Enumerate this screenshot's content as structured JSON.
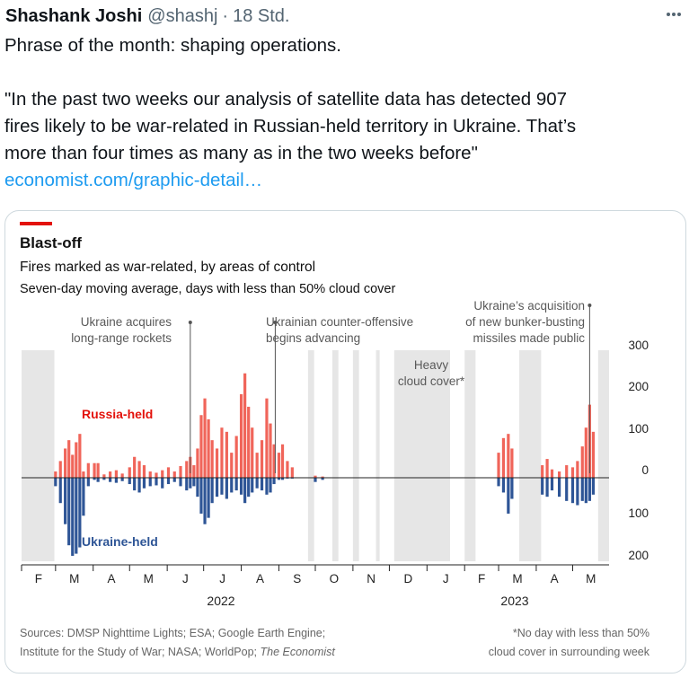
{
  "tweet": {
    "author_name": "Shashank Joshi",
    "handle": "@shashj",
    "separator": "·",
    "time": "18 Std.",
    "line1": "Phrase of the month: shaping operations.",
    "quote_lines": [
      "\"In the past two weeks our analysis of satellite data has detected 907",
      "fires likely to be war-related in Russian-held territory in Ukraine. That’s",
      "more than four times as many as in the two weeks before\""
    ],
    "link": "economist.com/graphic-detail…",
    "more_icon": "more-dots-icon"
  },
  "figure": {
    "title": "Blast-off",
    "subtitle": "Fires marked as war-related, by areas of control",
    "subtitle2": "Seven-day moving average, days with less than 50% cloud cover",
    "annotations": {
      "rockets": [
        "Ukraine acquires",
        "long-range rockets"
      ],
      "counter": [
        "Ukrainian counter-offensive",
        "begins advancing"
      ],
      "cloud": [
        "Heavy",
        "cloud cover*"
      ],
      "missiles": [
        "Ukraine’s acquisition",
        "of new bunker-busting",
        "missiles made public"
      ]
    },
    "series_labels": {
      "russia": "Russia-held",
      "ukraine": "Ukraine-held"
    },
    "sources": [
      "Sources: DMSP Nighttime Lights; ESA; Google Earth Engine;",
      "Institute for the Study of War; NASA; WorldPop; "
    ],
    "sources_italic": "The Economist",
    "footnote": [
      "*No day with less than 50%",
      "cloud cover in surrounding week"
    ],
    "colors": {
      "accent": "#e3120b",
      "russia": "#f0655a",
      "ukraine": "#2e5596",
      "shade": "#e6e6e6"
    }
  },
  "chart_data": {
    "type": "bar",
    "title": "Blast-off",
    "subtitle": "Fires marked as war-related, by areas of control",
    "xlabel": "",
    "ylabel": "",
    "x_ticks": [
      "F",
      "M",
      "A",
      "M",
      "J",
      "J",
      "A",
      "S",
      "O",
      "N",
      "D",
      "J",
      "F",
      "M",
      "A",
      "M"
    ],
    "year_labels": [
      "2022",
      "2023"
    ],
    "y_ticks_up": [
      "300",
      "200",
      "100",
      "0"
    ],
    "y_ticks_down": [
      "100",
      "200"
    ],
    "ylim": [
      -200,
      300
    ],
    "series": [
      {
        "name": "Russia-held",
        "direction": "up",
        "points": [
          [
            "2022-03-01",
            15
          ],
          [
            "2022-03-05",
            40
          ],
          [
            "2022-03-09",
            70
          ],
          [
            "2022-03-12",
            90
          ],
          [
            "2022-03-15",
            55
          ],
          [
            "2022-03-18",
            85
          ],
          [
            "2022-03-21",
            105
          ],
          [
            "2022-03-24",
            15
          ],
          [
            "2022-03-28",
            35
          ],
          [
            "2022-04-02",
            35
          ],
          [
            "2022-04-05",
            35
          ],
          [
            "2022-04-10",
            8
          ],
          [
            "2022-04-15",
            15
          ],
          [
            "2022-04-20",
            18
          ],
          [
            "2022-04-25",
            10
          ],
          [
            "2022-05-01",
            25
          ],
          [
            "2022-05-05",
            50
          ],
          [
            "2022-05-09",
            40
          ],
          [
            "2022-05-13",
            30
          ],
          [
            "2022-05-18",
            15
          ],
          [
            "2022-05-23",
            12
          ],
          [
            "2022-05-28",
            18
          ],
          [
            "2022-06-02",
            25
          ],
          [
            "2022-06-07",
            15
          ],
          [
            "2022-06-12",
            28
          ],
          [
            "2022-06-17",
            40
          ],
          [
            "2022-06-20",
            50
          ],
          [
            "2022-06-23",
            30
          ],
          [
            "2022-06-26",
            70
          ],
          [
            "2022-06-29",
            150
          ],
          [
            "2022-07-02",
            190
          ],
          [
            "2022-07-05",
            140
          ],
          [
            "2022-07-08",
            90
          ],
          [
            "2022-07-12",
            70
          ],
          [
            "2022-07-16",
            120
          ],
          [
            "2022-07-20",
            110
          ],
          [
            "2022-07-24",
            60
          ],
          [
            "2022-07-28",
            100
          ],
          [
            "2022-08-01",
            200
          ],
          [
            "2022-08-04",
            250
          ],
          [
            "2022-08-07",
            170
          ],
          [
            "2022-08-10",
            120
          ],
          [
            "2022-08-14",
            60
          ],
          [
            "2022-08-18",
            90
          ],
          [
            "2022-08-22",
            190
          ],
          [
            "2022-08-25",
            130
          ],
          [
            "2022-08-28",
            80
          ],
          [
            "2022-09-01",
            60
          ],
          [
            "2022-09-04",
            80
          ],
          [
            "2022-09-08",
            40
          ],
          [
            "2022-09-12",
            25
          ],
          [
            "2022-10-01",
            5
          ],
          [
            "2022-10-07",
            3
          ],
          [
            "2023-03-01",
            60
          ],
          [
            "2023-03-05",
            95
          ],
          [
            "2023-03-09",
            105
          ],
          [
            "2023-03-12",
            70
          ],
          [
            "2023-04-06",
            30
          ],
          [
            "2023-04-10",
            45
          ],
          [
            "2023-04-14",
            20
          ],
          [
            "2023-04-20",
            15
          ],
          [
            "2023-04-26",
            30
          ],
          [
            "2023-05-01",
            25
          ],
          [
            "2023-05-05",
            40
          ],
          [
            "2023-05-09",
            75
          ],
          [
            "2023-05-12",
            120
          ],
          [
            "2023-05-15",
            175
          ],
          [
            "2023-05-18",
            110
          ]
        ]
      },
      {
        "name": "Ukraine-held",
        "direction": "down",
        "points": [
          [
            "2022-03-01",
            20
          ],
          [
            "2022-03-05",
            60
          ],
          [
            "2022-03-09",
            110
          ],
          [
            "2022-03-12",
            160
          ],
          [
            "2022-03-15",
            185
          ],
          [
            "2022-03-18",
            180
          ],
          [
            "2022-03-21",
            165
          ],
          [
            "2022-03-24",
            90
          ],
          [
            "2022-03-28",
            20
          ],
          [
            "2022-04-02",
            5
          ],
          [
            "2022-04-05",
            10
          ],
          [
            "2022-04-10",
            5
          ],
          [
            "2022-04-15",
            10
          ],
          [
            "2022-04-20",
            12
          ],
          [
            "2022-04-25",
            8
          ],
          [
            "2022-05-01",
            15
          ],
          [
            "2022-05-05",
            30
          ],
          [
            "2022-05-09",
            35
          ],
          [
            "2022-05-13",
            25
          ],
          [
            "2022-05-18",
            20
          ],
          [
            "2022-05-23",
            18
          ],
          [
            "2022-05-28",
            25
          ],
          [
            "2022-06-02",
            15
          ],
          [
            "2022-06-07",
            10
          ],
          [
            "2022-06-12",
            20
          ],
          [
            "2022-06-17",
            30
          ],
          [
            "2022-06-20",
            25
          ],
          [
            "2022-06-23",
            20
          ],
          [
            "2022-06-26",
            45
          ],
          [
            "2022-06-29",
            85
          ],
          [
            "2022-07-02",
            110
          ],
          [
            "2022-07-05",
            95
          ],
          [
            "2022-07-08",
            60
          ],
          [
            "2022-07-12",
            45
          ],
          [
            "2022-07-16",
            40
          ],
          [
            "2022-07-20",
            50
          ],
          [
            "2022-07-24",
            35
          ],
          [
            "2022-07-28",
            30
          ],
          [
            "2022-08-01",
            40
          ],
          [
            "2022-08-04",
            60
          ],
          [
            "2022-08-07",
            45
          ],
          [
            "2022-08-10",
            35
          ],
          [
            "2022-08-14",
            25
          ],
          [
            "2022-08-18",
            30
          ],
          [
            "2022-08-22",
            40
          ],
          [
            "2022-08-25",
            35
          ],
          [
            "2022-08-28",
            15
          ],
          [
            "2022-09-01",
            5
          ],
          [
            "2022-09-04",
            5
          ],
          [
            "2022-09-08",
            2
          ],
          [
            "2022-09-12",
            2
          ],
          [
            "2022-10-01",
            10
          ],
          [
            "2022-10-07",
            5
          ],
          [
            "2023-03-01",
            20
          ],
          [
            "2023-03-05",
            35
          ],
          [
            "2023-03-09",
            85
          ],
          [
            "2023-03-12",
            50
          ],
          [
            "2023-04-06",
            40
          ],
          [
            "2023-04-10",
            45
          ],
          [
            "2023-04-14",
            30
          ],
          [
            "2023-04-20",
            45
          ],
          [
            "2023-04-26",
            55
          ],
          [
            "2023-05-01",
            60
          ],
          [
            "2023-05-05",
            65
          ],
          [
            "2023-05-09",
            55
          ],
          [
            "2023-05-12",
            60
          ],
          [
            "2023-05-15",
            55
          ],
          [
            "2023-05-18",
            40
          ]
        ]
      }
    ],
    "annotations": [
      {
        "date": "2022-06-20",
        "text": "Ukraine acquires long-range rockets"
      },
      {
        "date": "2022-08-29",
        "text": "Ukrainian counter-offensive begins advancing"
      },
      {
        "date": "2023-05-15",
        "text": "Ukraine’s acquisition of new bunker-busting missiles made public"
      }
    ],
    "shaded_periods": [
      {
        "start": "2022-02-01",
        "end": "2022-02-28"
      },
      {
        "start": "2022-09-25",
        "end": "2022-09-30"
      },
      {
        "start": "2022-10-15",
        "end": "2022-10-20"
      },
      {
        "start": "2022-11-01",
        "end": "2022-11-06"
      },
      {
        "start": "2022-11-20",
        "end": "2022-11-23"
      },
      {
        "start": "2022-12-05",
        "end": "2023-01-20",
        "label": "Heavy cloud cover*"
      },
      {
        "start": "2023-02-01",
        "end": "2023-02-10"
      },
      {
        "start": "2023-03-18",
        "end": "2023-04-05"
      },
      {
        "start": "2023-05-22",
        "end": "2023-05-31"
      }
    ],
    "grid": false,
    "legend": "inline labels"
  }
}
